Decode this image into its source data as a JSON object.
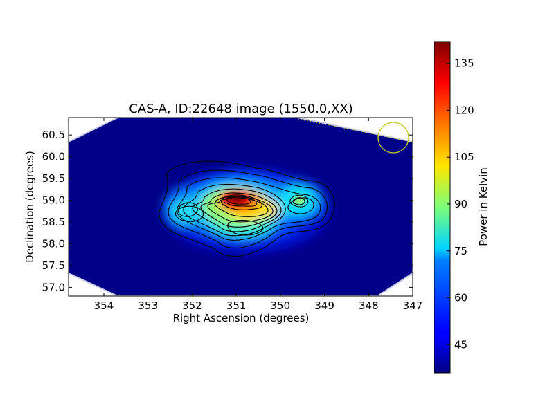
{
  "chart_data": {
    "type": "heatmap",
    "title": "CAS-A, ID:22648 image (1550.0,XX)",
    "xlabel": "Right Ascension (degrees)",
    "ylabel": "Declination (degrees)",
    "colorbar_label": "Power in Kelvin",
    "colormap": "jet",
    "x_axis_inverted": true,
    "xlim": [
      354.8,
      347.0
    ],
    "ylim": [
      56.8,
      60.9
    ],
    "x_ticks": [
      {
        "value": 354,
        "label": "354"
      },
      {
        "value": 353,
        "label": "353"
      },
      {
        "value": 352,
        "label": "352"
      },
      {
        "value": 351,
        "label": "351"
      },
      {
        "value": 350,
        "label": "350"
      },
      {
        "value": 349,
        "label": "349"
      },
      {
        "value": 348,
        "label": "348"
      },
      {
        "value": 347,
        "label": "347"
      }
    ],
    "y_ticks": [
      {
        "value": 57.0,
        "label": "57.0"
      },
      {
        "value": 57.5,
        "label": "57.5"
      },
      {
        "value": 58.0,
        "label": "58.0"
      },
      {
        "value": 58.5,
        "label": "58.5"
      },
      {
        "value": 59.0,
        "label": "59.0"
      },
      {
        "value": 59.5,
        "label": "59.5"
      },
      {
        "value": 60.0,
        "label": "60.0"
      },
      {
        "value": 60.5,
        "label": "60.5"
      }
    ],
    "colorbar_range": [
      36,
      142
    ],
    "colorbar_ticks": [
      {
        "value": 45,
        "label": "45"
      },
      {
        "value": 60,
        "label": "60"
      },
      {
        "value": 75,
        "label": "75"
      },
      {
        "value": 90,
        "label": "90"
      },
      {
        "value": 105,
        "label": "105"
      },
      {
        "value": 120,
        "label": "120"
      },
      {
        "value": 135,
        "label": "135"
      }
    ],
    "background_level": 40,
    "peak_level": 140,
    "peak_position": {
      "ra": 350.9,
      "dec": 59.0
    },
    "beam_circle": {
      "ra": 347.45,
      "dec": 60.4,
      "color": "#c8c820"
    }
  }
}
